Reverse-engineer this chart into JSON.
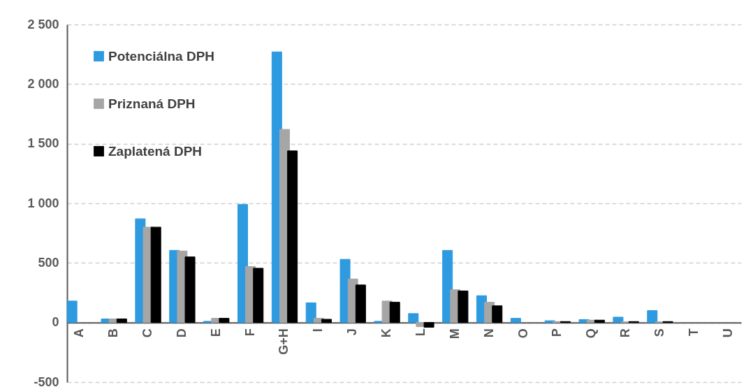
{
  "chart_data": {
    "type": "bar",
    "categories": [
      "A",
      "B",
      "C",
      "D",
      "E",
      "F",
      "G+H",
      "I",
      "J",
      "K",
      "L",
      "M",
      "N",
      "O",
      "P",
      "Q",
      "R",
      "S",
      "T",
      "U"
    ],
    "series": [
      {
        "name": "Potenciálna DPH",
        "color": "#2e9ae0",
        "values": [
          180,
          30,
          870,
          605,
          10,
          990,
          2270,
          165,
          530,
          10,
          75,
          605,
          225,
          35,
          15,
          25,
          45,
          100,
          null,
          null
        ]
      },
      {
        "name": "Priznaná DPH",
        "color": "#a6a6a6",
        "values": [
          null,
          30,
          800,
          600,
          35,
          470,
          1620,
          35,
          365,
          180,
          -35,
          275,
          170,
          null,
          8,
          20,
          5,
          5,
          null,
          null
        ]
      },
      {
        "name": "Zaplatená DPH",
        "color": "#000000",
        "values": [
          null,
          30,
          800,
          550,
          35,
          455,
          1440,
          27,
          315,
          170,
          -40,
          265,
          140,
          null,
          8,
          20,
          8,
          8,
          null,
          null
        ]
      }
    ],
    "ylim": [
      -500,
      2500
    ],
    "yticks": [
      -500,
      0,
      500,
      {
        "value": 1000,
        "label": "1 000"
      },
      {
        "value": 1500,
        "label": "1 500"
      },
      {
        "value": 2000,
        "label": "2 000"
      },
      {
        "value": 2500,
        "label": "2 500"
      }
    ],
    "grid": "y",
    "legend": "top left"
  }
}
